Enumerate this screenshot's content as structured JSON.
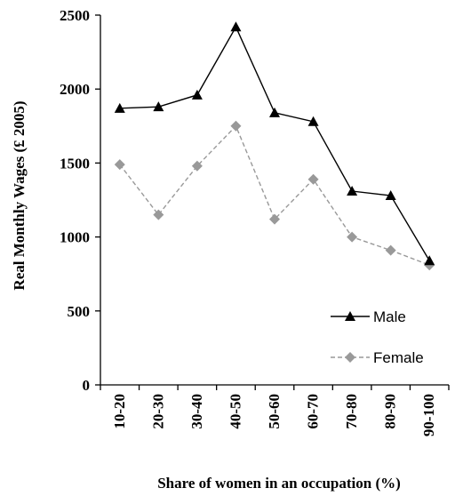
{
  "chart_data": {
    "type": "line",
    "categories": [
      "10-20",
      "20-30",
      "30-40",
      "40-50",
      "50-60",
      "60-70",
      "70-80",
      "80-90",
      "90-100"
    ],
    "series": [
      {
        "name": "Male",
        "values": [
          1870,
          1880,
          1960,
          2420,
          1840,
          1780,
          1310,
          1280,
          840
        ],
        "color": "#000000",
        "marker": "triangle",
        "line": "solid"
      },
      {
        "name": "Female",
        "values": [
          1490,
          1150,
          1480,
          1750,
          1120,
          1390,
          1000,
          910,
          810
        ],
        "color": "#999999",
        "marker": "diamond",
        "line": "dashed"
      }
    ],
    "title": "",
    "xlabel": "Share of women in an occupation (%)",
    "ylabel": "Real Monthly Wages (£ 2005)",
    "ylim": [
      0,
      2500
    ],
    "yticks": [
      0,
      500,
      1000,
      1500,
      2000,
      2500
    ],
    "grid": false,
    "legend_position": "bottom-right inside"
  }
}
